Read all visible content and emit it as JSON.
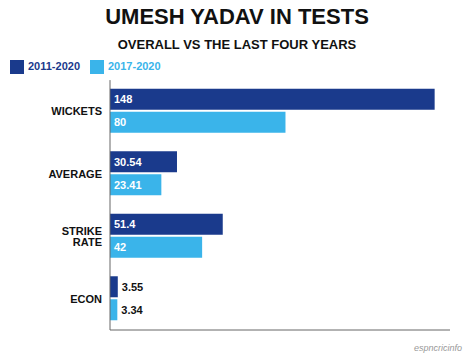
{
  "chart_data": {
    "type": "bar",
    "title": "UMESH YADAV IN TESTS",
    "subtitle": "OVERALL VS THE LAST FOUR YEARS",
    "orientation": "horizontal",
    "categories": [
      "ECON",
      "STRIKE RATE",
      "AVERAGE",
      "WICKETS"
    ],
    "series": [
      {
        "name": "2011-2020",
        "color": "#1a3a8c",
        "values": [
          3.55,
          51.4,
          30.54,
          148
        ]
      },
      {
        "name": "2017-2020",
        "color": "#3ab4ea",
        "values": [
          3.34,
          42,
          23.41,
          80
        ]
      }
    ],
    "xlim": [
      0,
      155
    ],
    "tick_labels": "y",
    "data_labels": true,
    "legend": "top",
    "grid": false,
    "annotations": [
      "espncricinfo"
    ]
  }
}
